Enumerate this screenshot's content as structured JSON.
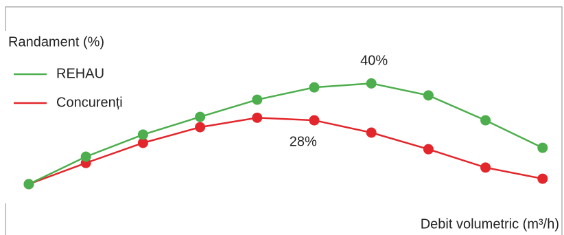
{
  "chart_data": {
    "type": "line",
    "y_label": "Randament (%)",
    "x_label": "Debit volumetric (m³/h)",
    "categories": [
      null,
      null,
      null,
      null,
      null,
      null,
      null,
      null,
      null,
      null
    ],
    "ylim": [
      0,
      60
    ],
    "series": [
      {
        "name": "REHAU",
        "color": "#4cae4c",
        "values": [
          4.8,
          14.4,
          22.1,
          28.3,
          34.3,
          38.6,
          40,
          35.8,
          27.1,
          17.5
        ],
        "value_labels": [
          null,
          null,
          null,
          null,
          null,
          null,
          "40%",
          null,
          null,
          null
        ]
      },
      {
        "name": "Concurenți",
        "color": "#e3262b",
        "values": [
          4.8,
          12.2,
          19.2,
          24.7,
          28,
          27.1,
          22.8,
          17.0,
          10.6,
          6.7
        ],
        "value_labels": [
          null,
          null,
          null,
          null,
          "28%",
          null,
          null,
          null,
          null,
          null
        ]
      }
    ]
  }
}
